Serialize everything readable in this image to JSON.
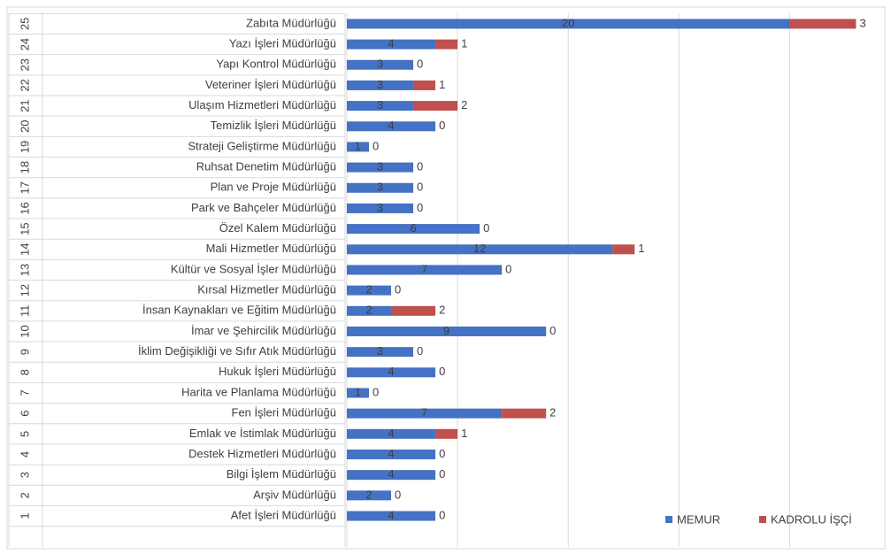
{
  "chart_data": {
    "type": "stacked-barh",
    "row_numbers": [
      1,
      2,
      3,
      4,
      5,
      6,
      7,
      8,
      9,
      10,
      11,
      12,
      13,
      14,
      15,
      16,
      17,
      18,
      19,
      20,
      21,
      22,
      23,
      24,
      25
    ],
    "categories": [
      "Afet İşleri Müdürlüğü",
      "Arşiv Müdürlüğü",
      "Bilgi İşlem Müdürlüğü",
      "Destek Hizmetleri Müdürlüğü",
      "Emlak ve İstimlak Müdürlüğü",
      "Fen İşleri Müdürlüğü",
      "Harita ve Planlama Müdürlüğü",
      "Hukuk İşleri Müdürlüğü",
      "İklim Değişikliği ve Sıfır Atık Müdürlüğü",
      "İmar ve Şehircilik Müdürlüğü",
      "İnsan Kaynakları ve Eğitim Müdürlüğü",
      "Kırsal Hizmetler Müdürlüğü",
      "Kültür ve Sosyal İşler Müdürlüğü",
      "Mali Hizmetler Müdürlüğü",
      "Özel Kalem Müdürlüğü",
      "Park ve Bahçeler Müdürlüğü",
      "Plan ve Proje Müdürlüğü",
      "Ruhsat Denetim Müdürlüğü",
      "Strateji Geliştirme Müdürlüğü",
      "Temizlik İşleri Müdürlüğü",
      "Ulaşım Hizmetleri Müdürlüğü",
      "Veteriner İşleri Müdürlüğü",
      "Yapı Kontrol Müdürlüğü",
      "Yazı İşleri Müdürlüğü",
      "Zabıta Müdürlüğü"
    ],
    "series": [
      {
        "name": "MEMUR",
        "color": "#4472c4",
        "values": [
          4,
          2,
          4,
          4,
          4,
          7,
          1,
          4,
          3,
          9,
          2,
          2,
          7,
          12,
          6,
          3,
          3,
          3,
          1,
          4,
          3,
          3,
          3,
          4,
          20
        ]
      },
      {
        "name": "KADROLU İŞÇİ",
        "color": "#c0504d",
        "values": [
          0,
          0,
          0,
          0,
          1,
          2,
          0,
          0,
          0,
          0,
          2,
          0,
          0,
          1,
          0,
          0,
          0,
          0,
          0,
          0,
          2,
          1,
          0,
          1,
          3
        ]
      }
    ],
    "xlim": [
      0,
      24.3
    ],
    "xticks": [
      0,
      5,
      10,
      15,
      20
    ],
    "tick_labels": false,
    "grid": true,
    "legend": "bottom-right"
  }
}
